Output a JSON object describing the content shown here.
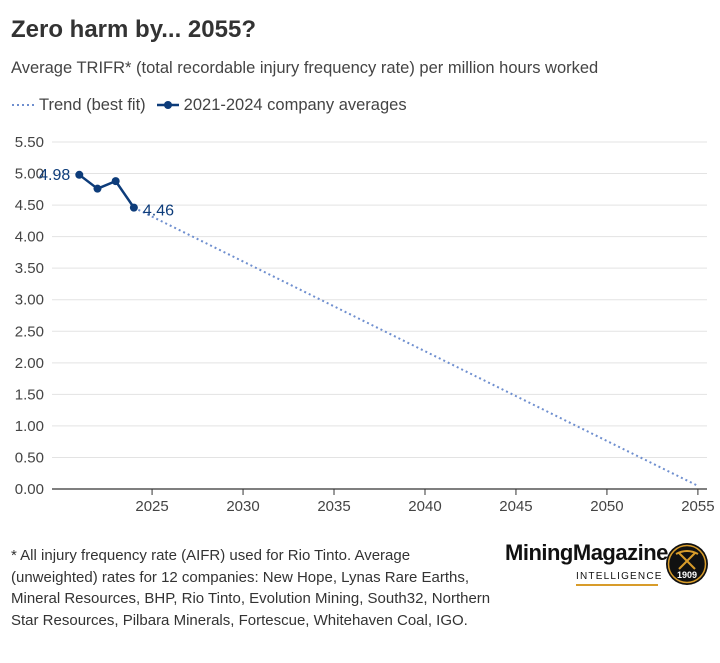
{
  "header": {
    "title": "Zero harm by... 2055?",
    "subtitle": "Average TRIFR* (total recordable injury frequency rate) per million hours worked"
  },
  "legend": {
    "trend_label": "Trend (best fit)",
    "averages_label": "2021-2024 company averages"
  },
  "colors": {
    "series": "#0d3c7a",
    "trend": "#6f8fcf",
    "grid": "#e3e3e3",
    "axis": "#333333",
    "logo_accent": "#d89c2a"
  },
  "chart_data": {
    "type": "line",
    "title": "Zero harm by... 2055?",
    "subtitle": "Average TRIFR* (total recordable injury frequency rate) per million hours worked",
    "xlim": [
      2019.5,
      2055.5
    ],
    "ylim": [
      0,
      5.5
    ],
    "x_ticks": [
      2025,
      2030,
      2035,
      2040,
      2045,
      2050,
      2055
    ],
    "y_ticks": [
      0,
      0.5,
      1,
      1.5,
      2,
      2.5,
      3,
      3.5,
      4,
      4.5,
      5,
      5.5
    ],
    "x_tick_labels": [
      "2025",
      "2030",
      "2035",
      "2040",
      "2045",
      "2050",
      "2055"
    ],
    "y_tick_labels": [
      "0.00",
      "0.50",
      "1.00",
      "1.50",
      "2.00",
      "2.50",
      "3.00",
      "3.50",
      "4.00",
      "4.50",
      "5.00",
      "5.50"
    ],
    "grid": "horizontal",
    "legend_position": "top-left",
    "series": [
      {
        "name": "2021-2024 company averages",
        "style": "solid-with-markers",
        "x": [
          2021,
          2022,
          2023,
          2024
        ],
        "y": [
          4.98,
          4.76,
          4.88,
          4.46
        ]
      },
      {
        "name": "Trend (best fit)",
        "style": "dotted",
        "x": [
          2024,
          2055
        ],
        "y": [
          4.46,
          0.05
        ]
      }
    ],
    "annotations": [
      {
        "text": "4.98",
        "x": 2021,
        "y": 4.98,
        "side": "left"
      },
      {
        "text": "4.46",
        "x": 2024,
        "y": 4.46,
        "side": "right"
      }
    ]
  },
  "footnote": "* All injury frequency rate (AIFR) used for Rio Tinto. Average (unweighted) rates for 12 companies: New Hope, Lynas Rare Earths, Mineral Resources, BHP, Rio Tinto, Evolution Mining, South32, Northern Star Resources, Pilbara Minerals, Fortescue, Whitehaven Coal, IGO.",
  "logo": {
    "wordmark": "MiningMagazine",
    "sub": "INTELLIGENCE",
    "badge_year": "1909",
    "badge_icon": "crossed-pickaxes-icon"
  }
}
